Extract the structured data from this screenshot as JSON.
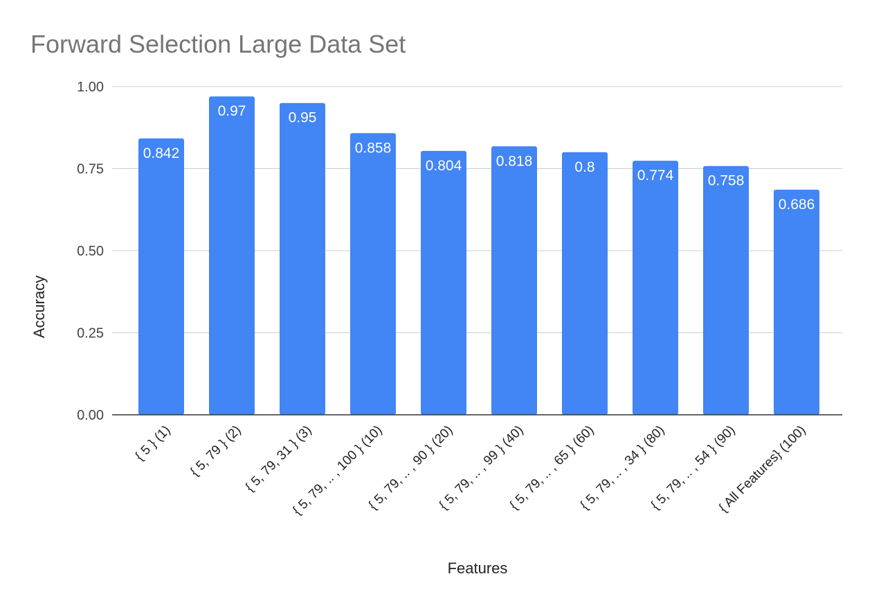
{
  "chart_data": {
    "type": "bar",
    "title": "Forward Selection Large Data Set",
    "xlabel": "Features",
    "ylabel": "Accuracy",
    "categories": [
      "{ 5 } (1)",
      "{ 5, 79 } (2)",
      "{ 5, 79, 31 } (3)",
      "{ 5, 79, .. , 100 } (10)",
      "{ 5, 79, .. , 90 } (20)",
      "{ 5, 79, .. , 99 } (40)",
      "{ 5, 79, .. , 65 } (60)",
      "{ 5, 79, .. , 34 } (80)",
      "{ 5, 79, .. , 54 } (90)",
      "{ All Features} (100)"
    ],
    "values": [
      0.842,
      0.97,
      0.95,
      0.858,
      0.804,
      0.818,
      0.8,
      0.774,
      0.758,
      0.686
    ],
    "data_labels": [
      "0.842",
      "0.97",
      "0.95",
      "0.858",
      "0.804",
      "0.818",
      "0.8",
      "0.774",
      "0.758",
      "0.686"
    ],
    "ylim": [
      0,
      1
    ],
    "yticks": [
      0,
      0.25,
      0.5,
      0.75,
      1
    ],
    "ytick_labels": [
      "0.00",
      "0.25",
      "0.50",
      "0.75",
      "1.00"
    ],
    "grid": true,
    "legend": "none",
    "bar_color": "#4285f4"
  }
}
